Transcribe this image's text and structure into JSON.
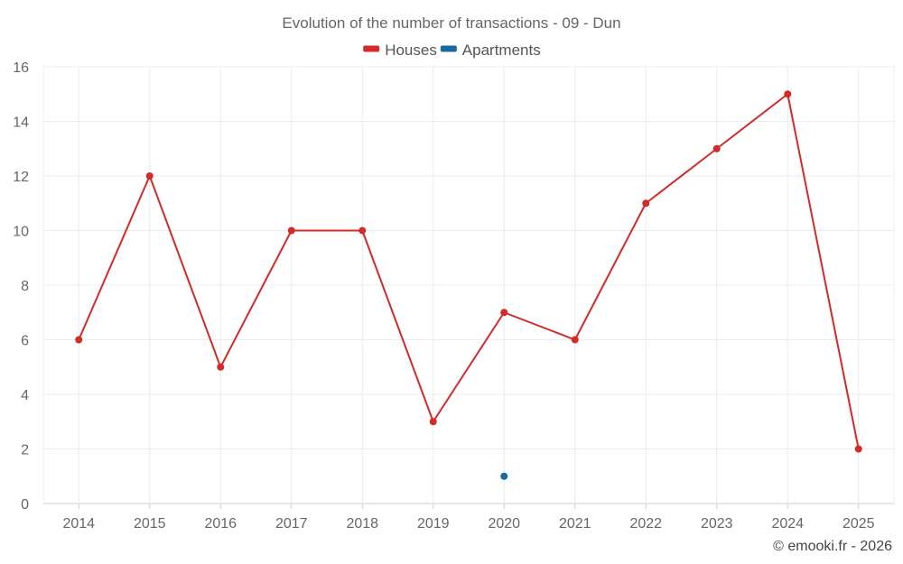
{
  "chart_data": {
    "type": "line",
    "title": "Evolution of the number of transactions - 09 - Dun",
    "categories": [
      "2014",
      "2015",
      "2016",
      "2017",
      "2018",
      "2019",
      "2020",
      "2021",
      "2022",
      "2023",
      "2024",
      "2025"
    ],
    "series": [
      {
        "name": "Houses",
        "color": "#d32a2a",
        "values": [
          6,
          12,
          5,
          10,
          10,
          3,
          7,
          6,
          11,
          13,
          15,
          2
        ]
      },
      {
        "name": "Apartments",
        "color": "#1a6a9a",
        "values": [
          null,
          null,
          null,
          null,
          null,
          null,
          1,
          null,
          null,
          null,
          null,
          null
        ]
      }
    ],
    "ylim": [
      0,
      16
    ],
    "yticks": [
      0,
      2,
      4,
      6,
      8,
      10,
      12,
      14,
      16
    ],
    "xlabel": "",
    "ylabel": "",
    "grid": true,
    "legend_position": "top-center"
  },
  "credit": "© emooki.fr - 2026"
}
